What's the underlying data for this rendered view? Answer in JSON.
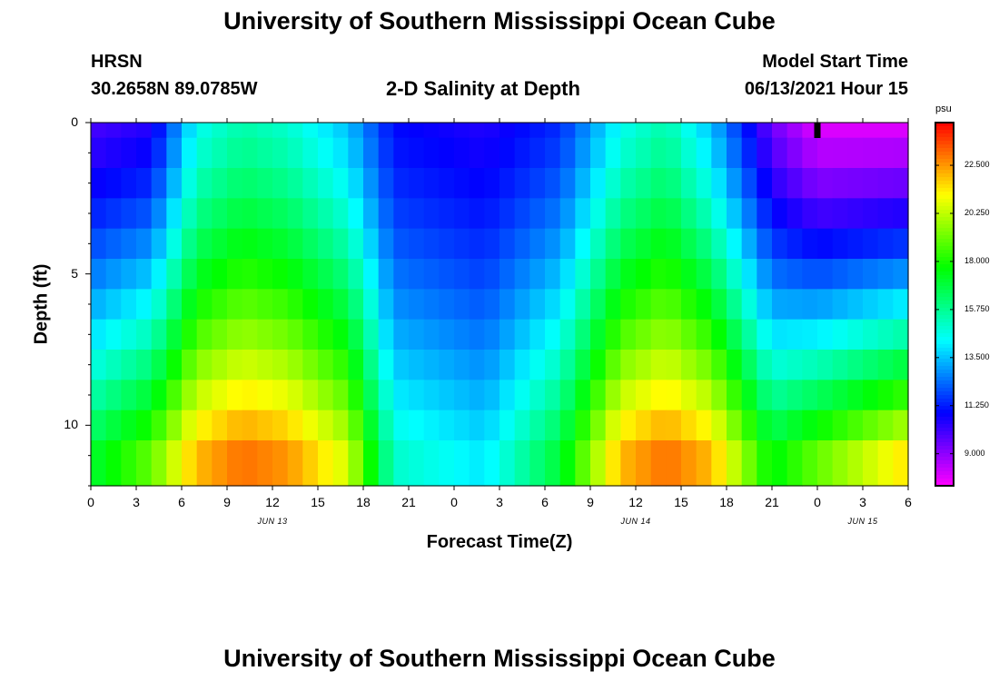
{
  "header": {
    "title": "University of Southern Mississippi Ocean Cube",
    "station": "HRSN",
    "coords": "30.2658N  89.0785W",
    "product": "2-D Salinity at Depth",
    "start_label": "Model Start Time",
    "start_value": "06/13/2021 Hour 15"
  },
  "footer": {
    "title": "University of Southern Mississippi Ocean Cube"
  },
  "chart_data": {
    "type": "heatmap",
    "title": "2-D Salinity at Depth",
    "xlabel": "Forecast Time(Z)",
    "ylabel": "Depth (ft)",
    "x_tick_labels": [
      "0",
      "3",
      "6",
      "9",
      "12",
      "15",
      "18",
      "21",
      "0",
      "3",
      "6",
      "9",
      "12",
      "15",
      "18",
      "21",
      "0",
      "3",
      "6"
    ],
    "x_range_hours": [
      0,
      54
    ],
    "date_labels": [
      {
        "text": "JUN 13",
        "hour": 12
      },
      {
        "text": "JUN 14",
        "hour": 36
      },
      {
        "text": "JUN 15",
        "hour": 51
      }
    ],
    "y_tick_labels": [
      "0",
      "5",
      "10"
    ],
    "y_tick_values": [
      0,
      5,
      10
    ],
    "y_range_ft": [
      0,
      12
    ],
    "depth_rows": [
      0,
      1,
      2,
      3,
      4,
      5,
      6,
      7,
      8,
      9,
      10,
      11
    ],
    "colorbar": {
      "unit": "psu",
      "range": [
        7.5,
        24.5
      ],
      "labels": [
        "22.500",
        "20.250",
        "18.000",
        "15.750",
        "13.500",
        "11.250",
        "9.000"
      ],
      "label_values": [
        22.5,
        20.25,
        18.0,
        15.75,
        13.5,
        11.25,
        9.0
      ]
    },
    "salinity_profile": {
      "description": "salinity (psu) at key times, surface (0 ft) and bottom (12 ft)",
      "time_hours": [
        0,
        4,
        7,
        10,
        13,
        17,
        20,
        26,
        31,
        35,
        38,
        41,
        45,
        48,
        54
      ],
      "surface_psu": [
        10.0,
        10.5,
        14.5,
        15.5,
        15.0,
        13.5,
        11.0,
        10.5,
        11.5,
        14.5,
        15.5,
        13.5,
        9.5,
        8.0,
        8.0
      ],
      "bottom_psu": [
        17.0,
        19.0,
        22.0,
        23.0,
        22.5,
        20.5,
        15.0,
        14.0,
        17.0,
        22.0,
        23.0,
        22.0,
        17.5,
        19.0,
        21.5
      ]
    },
    "current_time_marker_hour": 48
  }
}
